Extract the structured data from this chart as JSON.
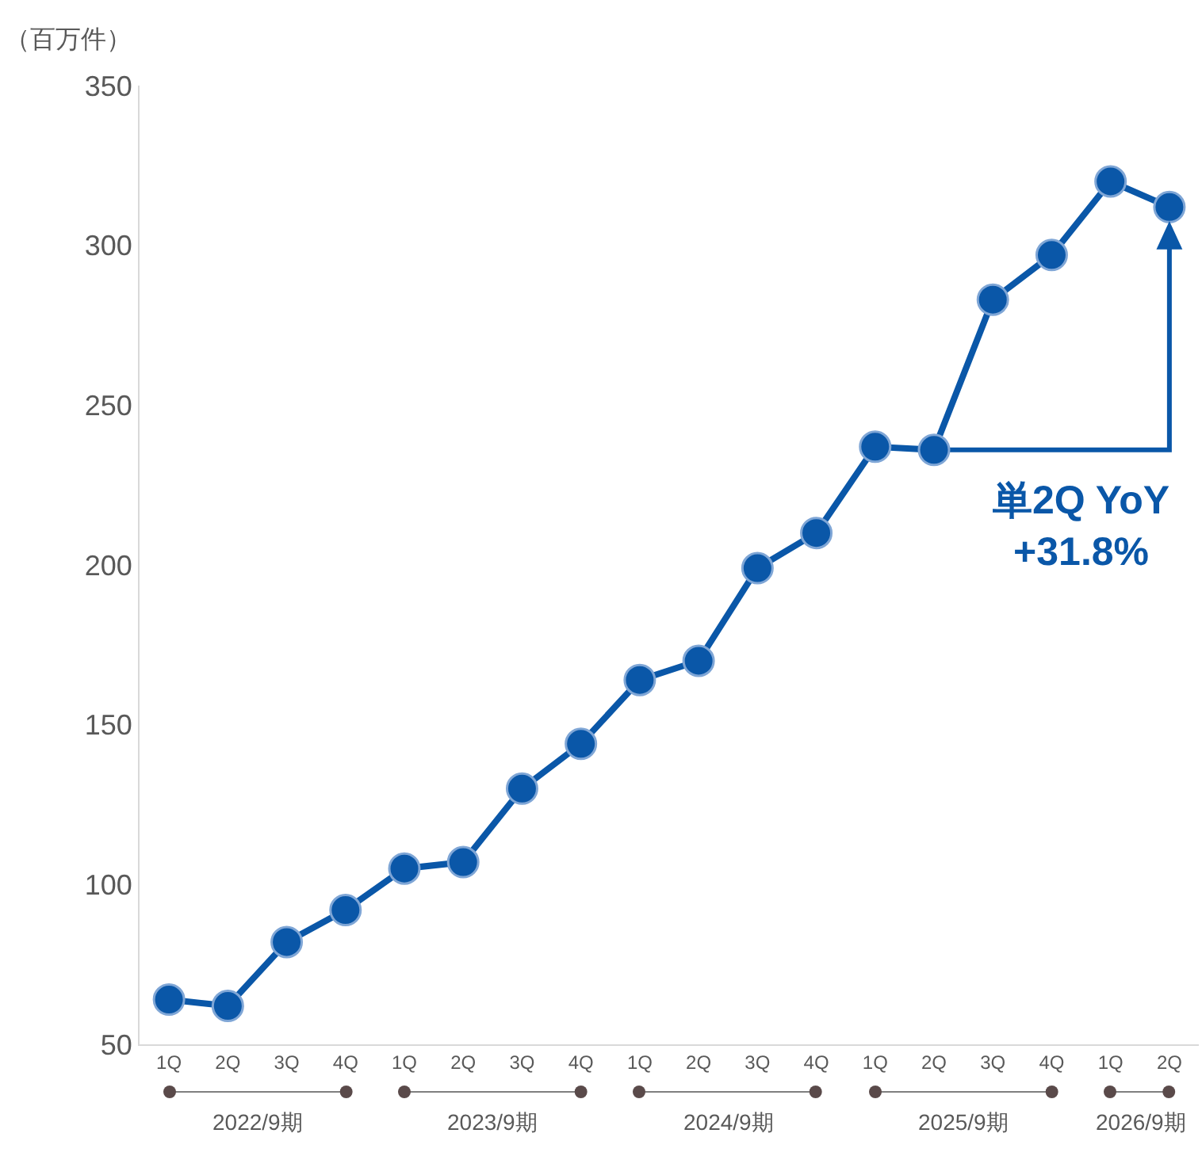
{
  "chart_data": {
    "type": "line",
    "ylabel": "（百万件）",
    "categories": [
      "1Q",
      "2Q",
      "3Q",
      "4Q",
      "1Q",
      "2Q",
      "3Q",
      "4Q",
      "1Q",
      "2Q",
      "3Q",
      "4Q",
      "1Q",
      "2Q",
      "3Q",
      "4Q",
      "1Q",
      "2Q"
    ],
    "series": [
      {
        "color": "#0a57a8",
        "values": [
          64,
          62,
          82,
          92,
          105,
          107,
          130,
          144,
          164,
          170,
          199,
          210,
          237,
          236,
          283,
          297,
          320,
          312
        ]
      }
    ],
    "ylim": [
      50,
      350
    ],
    "yticks": [
      50,
      100,
      150,
      200,
      250,
      300,
      350
    ],
    "grid": false,
    "marker": "circle",
    "line_style": "solid",
    "annotations": [
      "2022/9期",
      "2023/9期",
      "2024/9期",
      "2025/9期",
      "2026/9期",
      "単2Q YoY\n+31.8%"
    ]
  }
}
